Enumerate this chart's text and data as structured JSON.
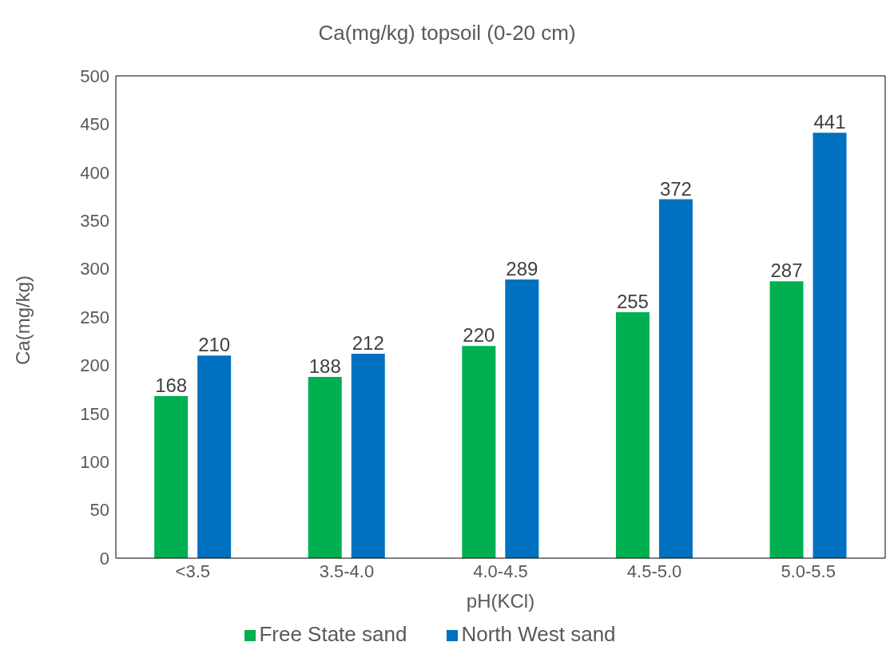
{
  "chart_data": {
    "type": "bar",
    "title": "Ca(mg/kg) topsoil (0-20 cm)",
    "xlabel": "pH(KCl)",
    "ylabel": "Ca(mg/kg)",
    "categories": [
      "<3.5",
      "3.5-4.0",
      "4.0-4.5",
      "4.5-5.0",
      "5.0-5.5"
    ],
    "series": [
      {
        "name": "Free State sand",
        "color": "#00b050",
        "values": [
          168,
          188,
          220,
          255,
          287
        ]
      },
      {
        "name": "North West sand",
        "color": "#0070c0",
        "values": [
          210,
          212,
          289,
          372,
          441
        ]
      }
    ],
    "ylim": [
      0,
      500
    ],
    "yticks": [
      0,
      50,
      100,
      150,
      200,
      250,
      300,
      350,
      400,
      450,
      500
    ],
    "grid": false,
    "legend": "bottom",
    "data_labels": true
  }
}
